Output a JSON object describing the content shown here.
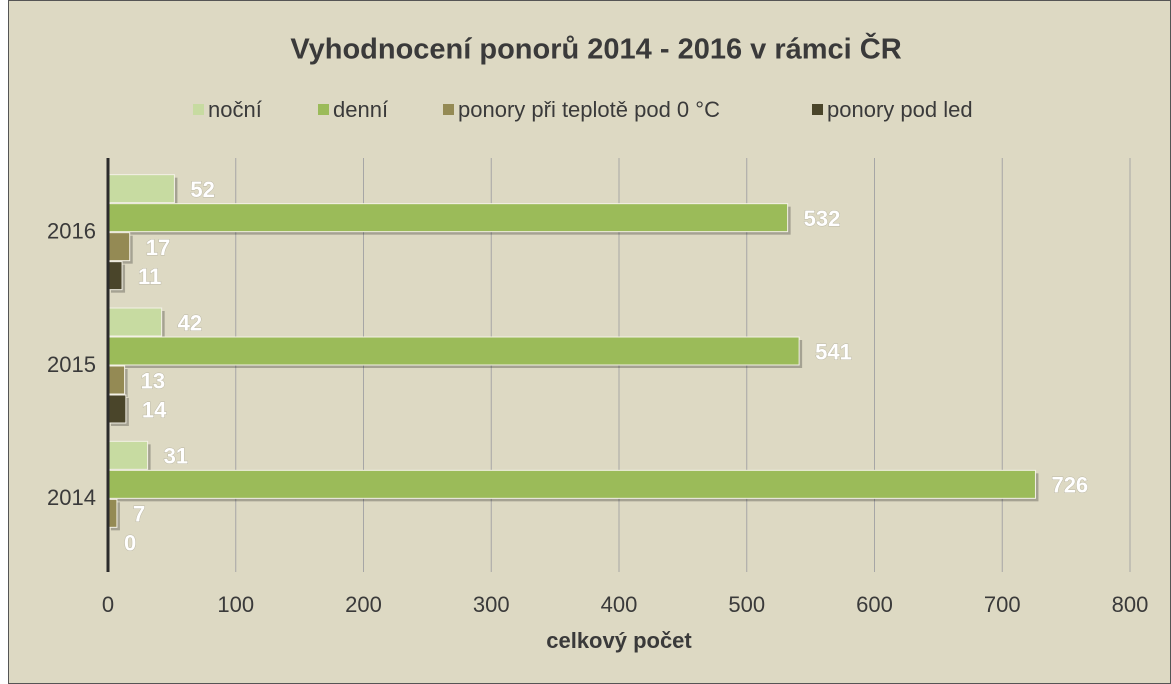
{
  "chart_data": {
    "type": "bar",
    "orientation": "horizontal",
    "title": "Vyhodnocení ponorů 2014 - 2016 v rámci ČR",
    "categories": [
      "2014",
      "2015",
      "2016"
    ],
    "series": [
      {
        "name": "noční",
        "color": "#c7dba1",
        "values": [
          31,
          42,
          52
        ]
      },
      {
        "name": "denní",
        "color": "#9bbb59",
        "values": [
          726,
          541,
          532
        ]
      },
      {
        "name": "ponory při teplotě pod 0 °C",
        "color": "#948a54",
        "values": [
          7,
          13,
          17
        ]
      },
      {
        "name": "ponory pod led",
        "color": "#4a452a",
        "values": [
          0,
          14,
          11
        ]
      }
    ],
    "x_label": "celkový počet",
    "xlim": [
      0,
      800
    ],
    "xticks": [
      0,
      100,
      200,
      300,
      400,
      500,
      600,
      700,
      800
    ],
    "grid": true,
    "legend": "top"
  }
}
